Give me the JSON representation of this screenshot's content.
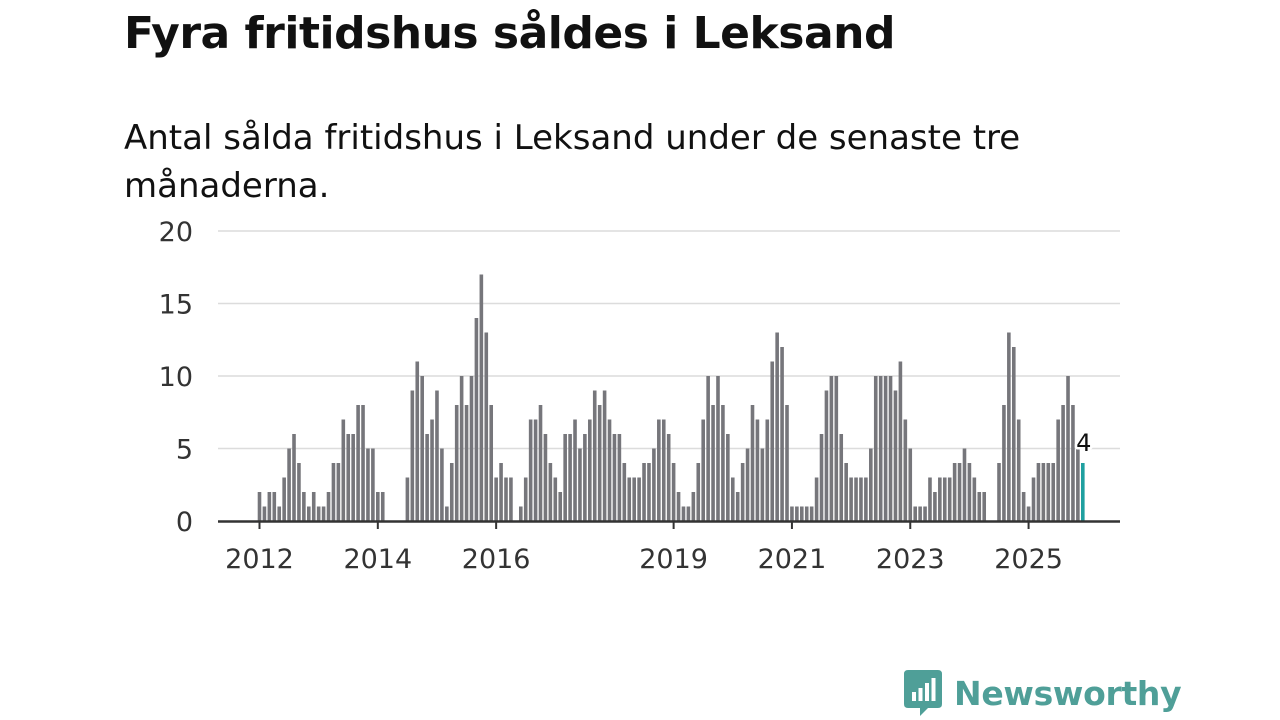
{
  "title": "Fyra fritidshus såldes i Leksand",
  "subtitle": "Antal sålda fritidshus i Leksand under de senaste tre månaderna.",
  "brand": {
    "name": "Newsworthy",
    "color": "#4f9f98"
  },
  "colors": {
    "bar": "#76767b",
    "highlight": "#1fa0a0",
    "grid": "#dcdcdc",
    "axis": "#333333",
    "text": "#333333"
  },
  "chart_data": {
    "type": "bar",
    "title": "Antal sålda fritidshus i Leksand under de senaste tre månaderna.",
    "xlabel": "",
    "ylabel": "",
    "ylim": [
      0,
      20
    ],
    "yticks": [
      0,
      5,
      10,
      15,
      20
    ],
    "grid": true,
    "x_start": {
      "year": 2012,
      "month": 1
    },
    "xticks": [
      {
        "label": "2012",
        "year": 2012,
        "month": 1
      },
      {
        "label": "2014",
        "year": 2014,
        "month": 1
      },
      {
        "label": "2016",
        "year": 2016,
        "month": 1
      },
      {
        "label": "2019",
        "year": 2019,
        "month": 1
      },
      {
        "label": "2021",
        "year": 2021,
        "month": 1
      },
      {
        "label": "2023",
        "year": 2023,
        "month": 1
      },
      {
        "label": "2025",
        "year": 2025,
        "month": 1
      }
    ],
    "values": [
      2,
      1,
      2,
      2,
      1,
      3,
      5,
      6,
      4,
      2,
      1,
      2,
      1,
      1,
      2,
      4,
      4,
      7,
      6,
      6,
      8,
      8,
      5,
      5,
      2,
      2,
      0,
      0,
      0,
      0,
      3,
      9,
      11,
      10,
      6,
      7,
      9,
      5,
      1,
      4,
      8,
      10,
      8,
      10,
      14,
      17,
      13,
      8,
      3,
      4,
      3,
      3,
      0,
      1,
      3,
      7,
      7,
      8,
      6,
      4,
      3,
      2,
      6,
      6,
      7,
      5,
      6,
      7,
      9,
      8,
      9,
      7,
      6,
      6,
      4,
      3,
      3,
      3,
      4,
      4,
      5,
      7,
      7,
      6,
      4,
      2,
      1,
      1,
      2,
      4,
      7,
      10,
      8,
      10,
      8,
      6,
      3,
      2,
      4,
      5,
      8,
      7,
      5,
      7,
      11,
      13,
      12,
      8,
      1,
      1,
      1,
      1,
      1,
      3,
      6,
      9,
      10,
      10,
      6,
      4,
      3,
      3,
      3,
      3,
      5,
      10,
      10,
      10,
      10,
      9,
      11,
      7,
      5,
      1,
      1,
      1,
      3,
      2,
      3,
      3,
      3,
      4,
      4,
      5,
      4,
      3,
      2,
      2,
      0,
      0,
      4,
      8,
      13,
      12,
      7,
      2,
      1,
      3,
      4,
      4,
      4,
      4,
      7,
      8,
      10,
      8,
      5,
      4
    ],
    "highlight_last": true,
    "annotation": {
      "label": "4",
      "target": "last"
    }
  }
}
